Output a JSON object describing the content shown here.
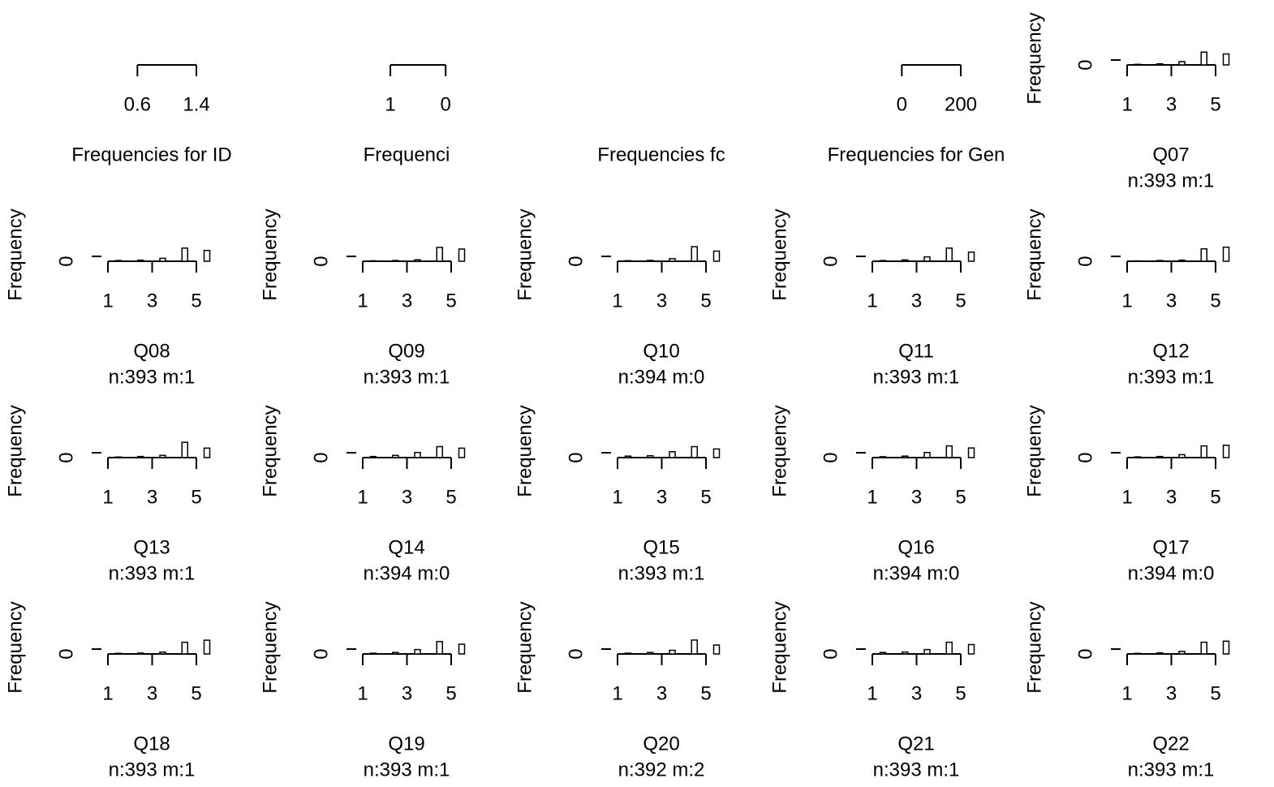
{
  "chart_data": [
    {
      "type": "bar",
      "title": "Frequencies for ID",
      "xlim": [
        0.2,
        1.4
      ],
      "xticks": [
        0.6,
        1.4
      ]
    },
    {
      "type": "bar",
      "title": "Frequenci",
      "xlim": [
        1.5,
        -0.1
      ],
      "xticks": [
        1,
        0
      ]
    },
    {
      "type": "bar",
      "title": "Frequencies fc"
    },
    {
      "type": "bar",
      "title": "Frequencies for Gen",
      "xlim": [
        -100,
        200
      ],
      "xticks": [
        0,
        200
      ]
    },
    {
      "type": "bar",
      "title": "Q07",
      "subtitle": "n:393 m:1",
      "ylabel": "Frequency",
      "x": [
        1,
        2,
        3,
        4,
        5
      ],
      "values": [
        8,
        15,
        45,
        175,
        150
      ],
      "xlim": [
        1,
        5
      ],
      "xticks": [
        1,
        3,
        5
      ],
      "ylim": [
        0,
        400
      ],
      "yticks": [
        0
      ]
    },
    {
      "type": "bar",
      "title": "Q08",
      "subtitle": "n:393 m:1",
      "ylabel": "Frequency",
      "x": [
        1,
        2,
        3,
        4,
        5
      ],
      "values": [
        10,
        15,
        40,
        180,
        148
      ],
      "xlim": [
        1,
        5
      ],
      "xticks": [
        1,
        3,
        5
      ],
      "ylim": [
        0,
        400
      ],
      "yticks": [
        0
      ]
    },
    {
      "type": "bar",
      "title": "Q09",
      "subtitle": "n:393 m:1",
      "ylabel": "Frequency",
      "x": [
        1,
        2,
        3,
        4,
        5
      ],
      "values": [
        6,
        10,
        20,
        190,
        167
      ],
      "xlim": [
        1,
        5
      ],
      "xticks": [
        1,
        3,
        5
      ],
      "ylim": [
        0,
        400
      ],
      "yticks": [
        0
      ]
    },
    {
      "type": "bar",
      "title": "Q10",
      "subtitle": "n:394 m:0",
      "ylabel": "Frequency",
      "x": [
        1,
        2,
        3,
        4,
        5
      ],
      "values": [
        8,
        12,
        35,
        200,
        139
      ],
      "xlim": [
        1,
        5
      ],
      "xticks": [
        1,
        3,
        5
      ],
      "ylim": [
        0,
        400
      ],
      "yticks": [
        0
      ]
    },
    {
      "type": "bar",
      "title": "Q11",
      "subtitle": "n:393 m:1",
      "ylabel": "Frequency",
      "x": [
        1,
        2,
        3,
        4,
        5
      ],
      "values": [
        10,
        18,
        60,
        180,
        125
      ],
      "xlim": [
        1,
        5
      ],
      "xticks": [
        1,
        3,
        5
      ],
      "ylim": [
        0,
        400
      ],
      "yticks": [
        0
      ]
    },
    {
      "type": "bar",
      "title": "Q12",
      "subtitle": "n:393 m:1",
      "ylabel": "Frequency",
      "x": [
        1,
        2,
        3,
        4,
        5
      ],
      "values": [
        5,
        10,
        15,
        170,
        193
      ],
      "xlim": [
        1,
        5
      ],
      "xticks": [
        1,
        3,
        5
      ],
      "ylim": [
        0,
        400
      ],
      "yticks": [
        0
      ]
    },
    {
      "type": "bar",
      "title": "Q13",
      "subtitle": "n:393 m:1",
      "ylabel": "Frequency",
      "x": [
        1,
        2,
        3,
        4,
        5
      ],
      "values": [
        8,
        15,
        30,
        210,
        130
      ],
      "xlim": [
        1,
        5
      ],
      "xticks": [
        1,
        3,
        5
      ],
      "ylim": [
        0,
        400
      ],
      "yticks": [
        0
      ]
    },
    {
      "type": "bar",
      "title": "Q14",
      "subtitle": "n:394 m:0",
      "ylabel": "Frequency",
      "x": [
        1,
        2,
        3,
        4,
        5
      ],
      "values": [
        15,
        30,
        70,
        150,
        129
      ],
      "xlim": [
        1,
        5
      ],
      "xticks": [
        1,
        3,
        5
      ],
      "ylim": [
        0,
        400
      ],
      "yticks": [
        0
      ]
    },
    {
      "type": "bar",
      "title": "Q15",
      "subtitle": "n:393 m:1",
      "ylabel": "Frequency",
      "x": [
        1,
        2,
        3,
        4,
        5
      ],
      "values": [
        20,
        25,
        80,
        150,
        118
      ],
      "xlim": [
        1,
        5
      ],
      "xticks": [
        1,
        3,
        5
      ],
      "ylim": [
        0,
        400
      ],
      "yticks": [
        0
      ]
    },
    {
      "type": "bar",
      "title": "Q16",
      "subtitle": "n:394 m:0",
      "ylabel": "Frequency",
      "x": [
        1,
        2,
        3,
        4,
        5
      ],
      "values": [
        12,
        20,
        70,
        160,
        132
      ],
      "xlim": [
        1,
        5
      ],
      "xticks": [
        1,
        3,
        5
      ],
      "ylim": [
        0,
        400
      ],
      "yticks": [
        0
      ]
    },
    {
      "type": "bar",
      "title": "Q17",
      "subtitle": "n:394 m:0",
      "ylabel": "Frequency",
      "x": [
        1,
        2,
        3,
        4,
        5
      ],
      "values": [
        10,
        15,
        40,
        160,
        169
      ],
      "xlim": [
        1,
        5
      ],
      "xticks": [
        1,
        3,
        5
      ],
      "ylim": [
        0,
        400
      ],
      "yticks": [
        0
      ]
    },
    {
      "type": "bar",
      "title": "Q18",
      "subtitle": "n:393 m:1",
      "ylabel": "Frequency",
      "x": [
        1,
        2,
        3,
        4,
        5
      ],
      "values": [
        8,
        12,
        25,
        160,
        188
      ],
      "xlim": [
        1,
        5
      ],
      "xticks": [
        1,
        3,
        5
      ],
      "ylim": [
        0,
        400
      ],
      "yticks": [
        0
      ]
    },
    {
      "type": "bar",
      "title": "Q19",
      "subtitle": "n:393 m:1",
      "ylabel": "Frequency",
      "x": [
        1,
        2,
        3,
        4,
        5
      ],
      "values": [
        10,
        20,
        60,
        170,
        133
      ],
      "xlim": [
        1,
        5
      ],
      "xticks": [
        1,
        3,
        5
      ],
      "ylim": [
        0,
        400
      ],
      "yticks": [
        0
      ]
    },
    {
      "type": "bar",
      "title": "Q20",
      "subtitle": "n:392 m:2",
      "ylabel": "Frequency",
      "x": [
        1,
        2,
        3,
        4,
        5
      ],
      "values": [
        10,
        20,
        50,
        190,
        122
      ],
      "xlim": [
        1,
        5
      ],
      "xticks": [
        1,
        3,
        5
      ],
      "ylim": [
        0,
        400
      ],
      "yticks": [
        0
      ]
    },
    {
      "type": "bar",
      "title": "Q21",
      "subtitle": "n:393 m:1",
      "ylabel": "Frequency",
      "x": [
        1,
        2,
        3,
        4,
        5
      ],
      "values": [
        20,
        25,
        60,
        160,
        128
      ],
      "xlim": [
        1,
        5
      ],
      "xticks": [
        1,
        3,
        5
      ],
      "ylim": [
        0,
        400
      ],
      "yticks": [
        0
      ]
    },
    {
      "type": "bar",
      "title": "Q22",
      "subtitle": "n:393 m:1",
      "ylabel": "Frequency",
      "x": [
        1,
        2,
        3,
        4,
        5
      ],
      "values": [
        8,
        15,
        35,
        160,
        175
      ],
      "xlim": [
        1,
        5
      ],
      "xticks": [
        1,
        3,
        5
      ],
      "ylim": [
        0,
        400
      ],
      "yticks": [
        0
      ]
    }
  ]
}
